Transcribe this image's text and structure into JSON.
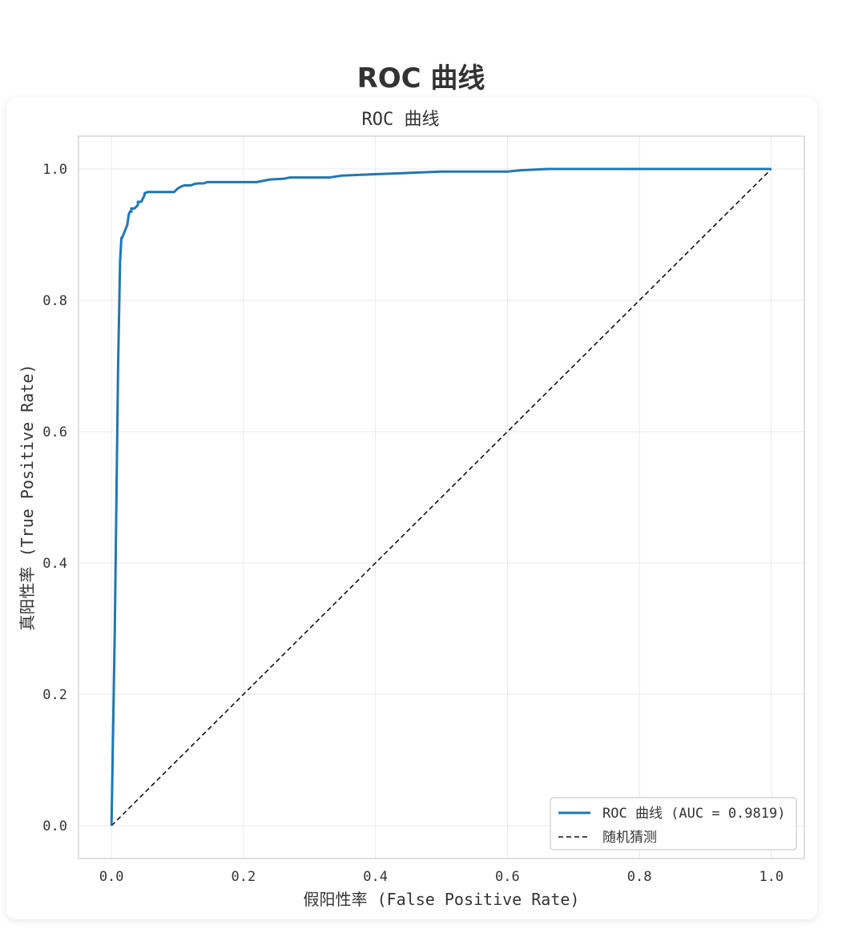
{
  "page": {
    "title": "ROC 曲线"
  },
  "chart_data": {
    "type": "line",
    "title": "ROC 曲线",
    "xlabel": "假阳性率 (False Positive Rate)",
    "ylabel": "真阳性率 (True Positive Rate)",
    "xlim": [
      -0.05,
      1.05
    ],
    "ylim": [
      -0.05,
      1.05
    ],
    "xticks": [
      "0.0",
      "0.2",
      "0.4",
      "0.6",
      "0.8",
      "1.0"
    ],
    "yticks": [
      "0.0",
      "0.2",
      "0.4",
      "0.6",
      "0.8",
      "1.0"
    ],
    "grid": true,
    "legend_position": "lower-right",
    "series": [
      {
        "name": "ROC 曲线 (AUC = 0.9819)",
        "color": "#1f77b4",
        "style": "solid",
        "x": [
          0.0,
          0.005,
          0.01,
          0.013,
          0.015,
          0.016,
          0.018,
          0.02,
          0.022,
          0.024,
          0.026,
          0.028,
          0.03,
          0.03,
          0.035,
          0.04,
          0.04,
          0.045,
          0.05,
          0.05,
          0.055,
          0.06,
          0.08,
          0.095,
          0.1,
          0.105,
          0.11,
          0.12,
          0.125,
          0.13,
          0.14,
          0.145,
          0.18,
          0.22,
          0.23,
          0.24,
          0.26,
          0.27,
          0.33,
          0.35,
          0.4,
          0.45,
          0.5,
          0.6,
          0.62,
          0.66,
          0.7,
          0.8,
          0.9,
          1.0
        ],
        "y": [
          0.0,
          0.3,
          0.7,
          0.86,
          0.895,
          0.895,
          0.9,
          0.905,
          0.91,
          0.915,
          0.93,
          0.935,
          0.935,
          0.94,
          0.94,
          0.945,
          0.95,
          0.95,
          0.96,
          0.963,
          0.965,
          0.965,
          0.965,
          0.965,
          0.97,
          0.973,
          0.975,
          0.975,
          0.977,
          0.978,
          0.978,
          0.98,
          0.98,
          0.98,
          0.982,
          0.984,
          0.985,
          0.987,
          0.987,
          0.99,
          0.992,
          0.994,
          0.996,
          0.996,
          0.998,
          1.0,
          1.0,
          1.0,
          1.0,
          1.0
        ]
      },
      {
        "name": "随机猜测",
        "color": "#111111",
        "style": "dashed",
        "x": [
          0.0,
          1.0
        ],
        "y": [
          0.0,
          1.0
        ]
      }
    ]
  }
}
